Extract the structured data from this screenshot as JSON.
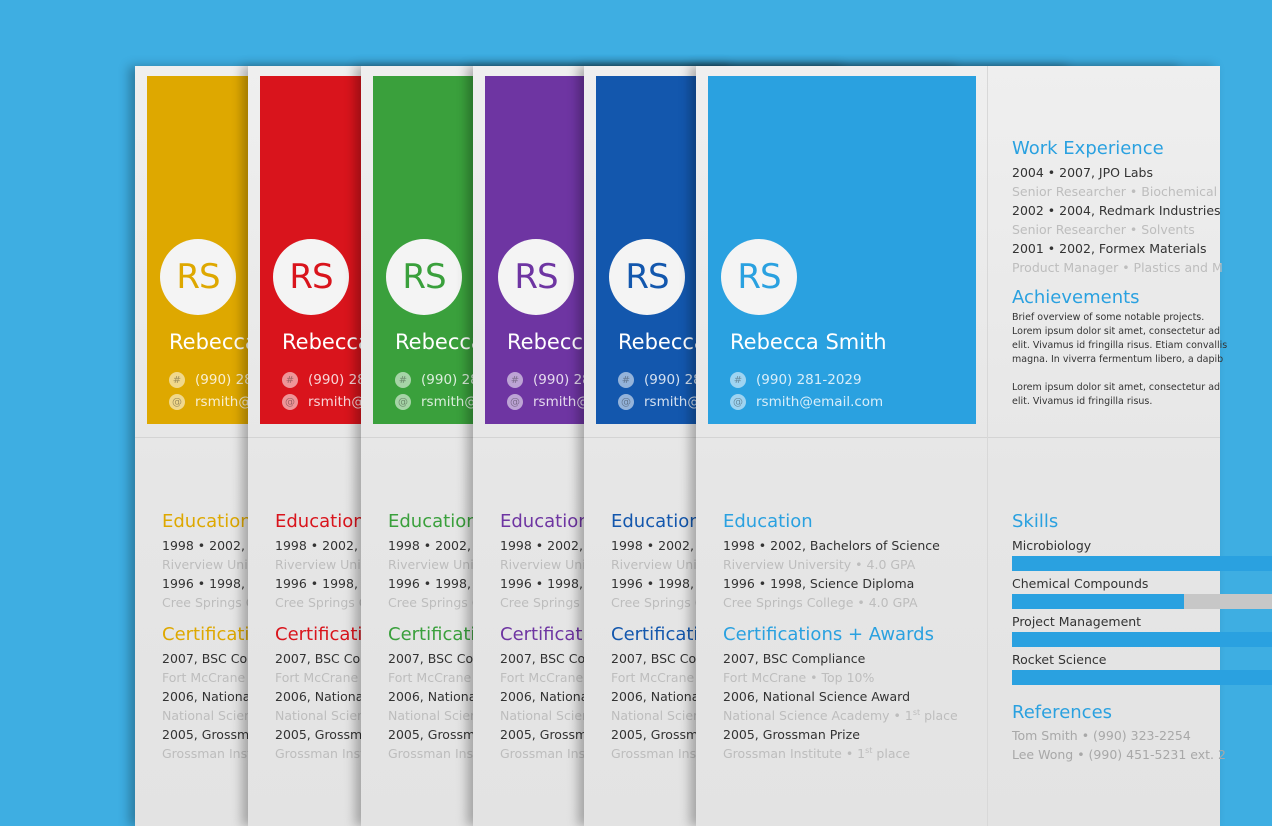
{
  "resume": {
    "initials": "RS",
    "name": "Rebecca Smith",
    "phone": "(990) 281-2029",
    "email": "rsmith@email.com",
    "education": {
      "title": "Education",
      "entries": [
        {
          "line1": "1998 • 2002, Bachelors of Science",
          "line2": "Riverview University • 4.0 GPA"
        },
        {
          "line1": "1996 • 1998, Science Diploma",
          "line2": "Cree Springs College • 4.0 GPA"
        }
      ]
    },
    "certifications": {
      "title": "Certifications + Awards",
      "entries": [
        {
          "line1": "2007, BSC Compliance",
          "line2": "Fort McCrane • Top 10%"
        },
        {
          "line1": "2006, National Science Award",
          "line2": "National Science Academy • 1",
          "line2_sup": "st",
          "line2_tail": " place"
        },
        {
          "line1": "2005, Grossman Prize",
          "line2": "Grossman Institute • 1",
          "line2_sup": "st",
          "line2_tail": " place"
        }
      ]
    },
    "work": {
      "title": "Work Experience",
      "entries": [
        {
          "line1": "2004 • 2007, JPO Labs",
          "line2": "Senior Researcher • Biochemical"
        },
        {
          "line1": "2002 • 2004, Redmark Industries",
          "line2": "Senior Researcher • Solvents"
        },
        {
          "line1": "2001 • 2002, Formex Materials",
          "line2": "Product Manager • Plastics and M"
        }
      ]
    },
    "achievements": {
      "title": "Achievements",
      "lines": [
        "Brief overview of some notable projects.",
        "Lorem ipsum dolor sit amet, consectetur ad",
        "elit. Vivamus id fringilla risus. Etiam convallis",
        "magna. In viverra fermentum libero, a dapib",
        "",
        "Lorem ipsum dolor sit amet, consectetur ad",
        "elit. Vivamus id fringilla risus."
      ]
    },
    "skills": {
      "title": "Skills",
      "items": [
        {
          "label": "Microbiology",
          "level": 1.0
        },
        {
          "label": "Chemical Compounds",
          "level": 0.66
        },
        {
          "label": "Project Management",
          "level": 1.0
        },
        {
          "label": "Rocket Science",
          "level": 1.0
        }
      ]
    },
    "references": {
      "title": "References",
      "lines": [
        "Tom Smith • (990) 323-2254",
        "Lee Wong • (990) 451-5231 ext. 2"
      ]
    }
  },
  "colors": {
    "background": "#3eaee2",
    "sheets": [
      "#dea800",
      "#d9141c",
      "#3aa03c",
      "#6e35a2",
      "#1357ad",
      "#2aa1e0"
    ]
  }
}
